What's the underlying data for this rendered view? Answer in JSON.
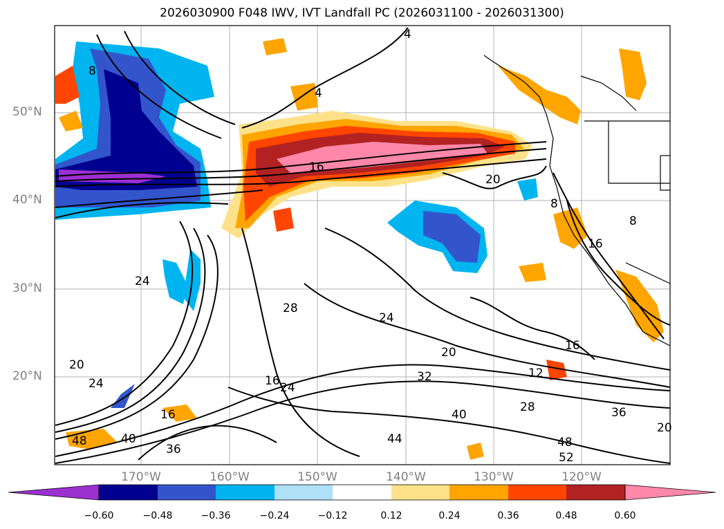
{
  "title": "2026030900 F048 IWV, IVT Landfall PC (2026031100 - 2026031300)",
  "latitude_labels": [
    "50°N",
    "40°N",
    "30°N",
    "20°N"
  ],
  "longitude_labels": [
    "170°W",
    "160°W",
    "150°W",
    "140°W",
    "130°W",
    "120°W"
  ],
  "contour_labels": [
    "8",
    "4",
    "4",
    "16",
    "20",
    "8",
    "8",
    "16",
    "24",
    "28",
    "24",
    "20",
    "32",
    "28",
    "20",
    "24",
    "16",
    "24",
    "40",
    "36",
    "48",
    "52",
    "44",
    "48",
    "40",
    "36",
    "16",
    "12",
    "16",
    "20"
  ],
  "colorbar": {
    "ticks": [
      "−0.60",
      "−0.48",
      "−0.36",
      "−0.24",
      "−0.12",
      "0.12",
      "0.24",
      "0.36",
      "0.48",
      "0.60"
    ],
    "colors": [
      "#9b30d0",
      "#000090",
      "#3355cc",
      "#00b4f0",
      "#aee0f8",
      "#ffffff",
      "#fde28a",
      "#ffa500",
      "#ff4500",
      "#b22222",
      "#ff88aa"
    ]
  }
}
